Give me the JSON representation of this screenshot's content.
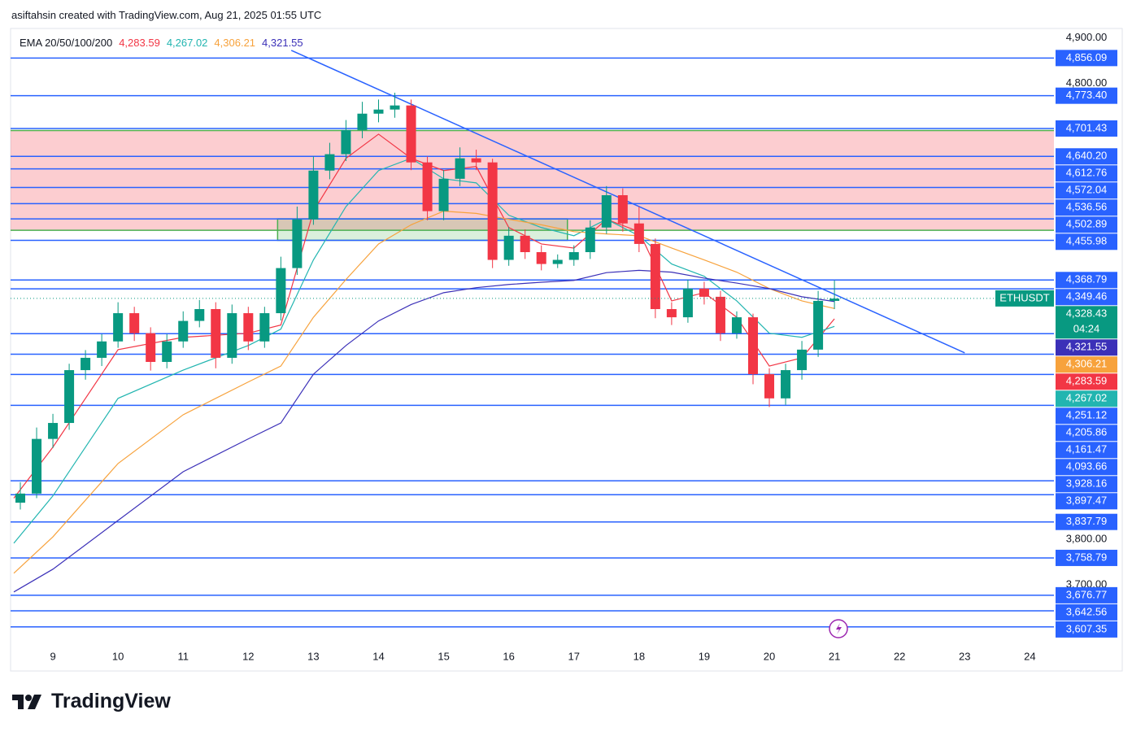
{
  "header": {
    "attribution": "asiftahsin created with TradingView.com, Aug 21, 2025 01:55 UTC"
  },
  "footer": {
    "logo": "TradingView"
  },
  "chart_data": {
    "type": "candlestick",
    "indicator": "EMA 20/50/100/200",
    "symbol": "ETHUSDT",
    "xlim": [
      8.35,
      24.37
    ],
    "ylim": [
      3573,
      4921
    ],
    "xticks": [
      9,
      10,
      11,
      12,
      13,
      14,
      15,
      16,
      17,
      18,
      19,
      20,
      21,
      22,
      23,
      24
    ],
    "yticks": [
      {
        "value": 4900,
        "label": "4,900.00"
      },
      {
        "value": 4800,
        "label": "4,800.00"
      },
      {
        "value": 3800,
        "label": "3,800.00"
      },
      {
        "value": 3700,
        "label": "3,700.00"
      }
    ],
    "up_color": "#089981",
    "down_color": "#f23645",
    "candles": {
      "x": [
        8.5,
        8.75,
        9,
        9.25,
        9.5,
        9.75,
        10,
        10.25,
        10.5,
        10.75,
        11,
        11.25,
        11.5,
        11.75,
        12,
        12.25,
        12.5,
        12.75,
        13,
        13.25,
        13.5,
        13.75,
        14,
        14.25,
        14.5,
        14.75,
        15,
        15.25,
        15.5,
        15.75,
        16,
        16.25,
        16.5,
        16.75,
        17,
        17.25,
        17.5,
        17.75,
        18,
        18.25,
        18.5,
        18.75,
        19,
        19.25,
        19.5,
        19.75,
        20,
        20.25,
        20.5,
        20.75,
        21
      ],
      "open": [
        3880,
        3900,
        4020,
        4055,
        4171,
        4198,
        4234,
        4296,
        4252,
        4189,
        4234,
        4279,
        4305,
        4198,
        4296,
        4234,
        4296,
        4395,
        4502,
        4609,
        4645,
        4698,
        4734,
        4743,
        4752,
        4627,
        4520,
        4591,
        4636,
        4627,
        4413,
        4466,
        4430,
        4404,
        4413,
        4430,
        4484,
        4555,
        4493,
        4448,
        4305,
        4287,
        4350,
        4332,
        4252,
        4287,
        4162,
        4109,
        4171,
        4216,
        4323
      ],
      "high": [
        3925,
        4045,
        4075,
        4185,
        4215,
        4250,
        4320,
        4310,
        4265,
        4250,
        4300,
        4325,
        4320,
        4315,
        4310,
        4310,
        4420,
        4530,
        4640,
        4670,
        4720,
        4760,
        4765,
        4780,
        4765,
        4640,
        4610,
        4660,
        4655,
        4635,
        4485,
        4480,
        4445,
        4425,
        4445,
        4500,
        4575,
        4570,
        4530,
        4460,
        4320,
        4370,
        4365,
        4345,
        4300,
        4295,
        4175,
        4185,
        4235,
        4345,
        4368
      ],
      "low": [
        3865,
        3890,
        4000,
        4040,
        4150,
        4180,
        4220,
        4235,
        4170,
        4175,
        4220,
        4265,
        4175,
        4185,
        4215,
        4220,
        4280,
        4380,
        4490,
        4590,
        4630,
        4680,
        4715,
        4725,
        4610,
        4500,
        4500,
        4575,
        4610,
        4395,
        4400,
        4415,
        4390,
        4395,
        4400,
        4415,
        4470,
        4475,
        4430,
        4285,
        4270,
        4275,
        4315,
        4235,
        4240,
        4140,
        4090,
        4095,
        4150,
        4200,
        4305
      ],
      "close": [
        3900,
        4020,
        4055,
        4171,
        4198,
        4234,
        4296,
        4252,
        4189,
        4234,
        4279,
        4305,
        4198,
        4296,
        4234,
        4296,
        4395,
        4502,
        4609,
        4645,
        4698,
        4734,
        4743,
        4752,
        4627,
        4520,
        4591,
        4636,
        4627,
        4413,
        4466,
        4430,
        4404,
        4413,
        4430,
        4484,
        4555,
        4493,
        4448,
        4305,
        4287,
        4350,
        4332,
        4252,
        4287,
        4162,
        4109,
        4171,
        4216,
        4323,
        4328
      ]
    },
    "ema_x": [
      8.4,
      9,
      10,
      11,
      12,
      12.5,
      13,
      13.5,
      14,
      14.5,
      15,
      15.5,
      16,
      16.5,
      17,
      17.5,
      18,
      18.5,
      19,
      19.5,
      20,
      20.5,
      21
    ],
    "series": [
      {
        "color": "#f23645",
        "value_label": "4,283.59",
        "values": [
          3890,
          4002,
          4216,
          4243,
          4252,
          4270,
          4520,
          4636,
          4689,
          4636,
          4609,
          4618,
          4484,
          4448,
          4439,
          4502,
          4475,
          4323,
          4341,
          4287,
          4180,
          4198,
          4283.59
        ]
      },
      {
        "color": "#22b5b0",
        "value_label": "4,267.02",
        "values": [
          3791,
          3895,
          4109,
          4171,
          4225,
          4261,
          4413,
          4530,
          4609,
          4636,
          4591,
          4582,
          4511,
          4484,
          4466,
          4502,
          4466,
          4404,
          4377,
          4323,
          4252,
          4243,
          4267.02
        ]
      },
      {
        "color": "#f7a23c",
        "value_label": "4,306.21",
        "values": [
          3725,
          3805,
          3966,
          4073,
          4145,
          4180,
          4287,
          4370,
          4448,
          4490,
          4520,
          4515,
          4502,
          4490,
          4475,
          4470,
          4466,
          4439,
          4413,
          4386,
          4350,
          4323,
          4306.21
        ]
      },
      {
        "color": "#3b30b8",
        "value_label": "4,321.55",
        "values": [
          3684,
          3734,
          3841,
          3948,
          4020,
          4055,
          4162,
          4225,
          4279,
          4315,
          4341,
          4352,
          4359,
          4364,
          4368,
          4385,
          4390,
          4386,
          4373,
          4362,
          4350,
          4332,
          4321.55
        ]
      }
    ],
    "current": {
      "value": 4328.43,
      "label": "4,328.43",
      "countdown": "04:24",
      "color": "#089981"
    },
    "level_color": "#2962ff",
    "levels": [
      {
        "value": 4856.09,
        "label": "4,856.09"
      },
      {
        "value": 4773.4,
        "label": "4,773.40"
      },
      {
        "value": 4701.43,
        "label": "4,701.43"
      },
      {
        "value": 4640.2,
        "label": "4,640.20"
      },
      {
        "value": 4612.76,
        "label": "4,612.76"
      },
      {
        "value": 4572.04,
        "label": "4,572.04"
      },
      {
        "value": 4536.56,
        "label": "4,536.56"
      },
      {
        "value": 4502.89,
        "label": "4,502.89"
      },
      {
        "value": 4455.98,
        "label": "4,455.98"
      },
      {
        "value": 4368.79,
        "label": "4,368.79"
      },
      {
        "value": 4349.46,
        "label": "4,349.46"
      },
      {
        "value": 4251.12,
        "label": "4,251.12"
      },
      {
        "value": 4205.86,
        "label": "4,205.86"
      },
      {
        "value": 4161.47,
        "label": "4,161.47"
      },
      {
        "value": 4093.66,
        "label": "4,093.66"
      },
      {
        "value": 3928.16,
        "label": "3,928.16"
      },
      {
        "value": 3897.47,
        "label": "3,897.47"
      },
      {
        "value": 3837.79,
        "label": "3,837.79"
      },
      {
        "value": 3758.79,
        "label": "3,758.79"
      },
      {
        "value": 3676.77,
        "label": "3,676.77"
      },
      {
        "value": 3642.56,
        "label": "3,642.56"
      },
      {
        "value": 3607.35,
        "label": "3,607.35"
      }
    ],
    "zone": {
      "y": [
        4478,
        4697
      ],
      "color": "#f23645",
      "edge_color": "#4caf50"
    },
    "box": {
      "x": [
        12.45,
        16.9
      ],
      "y": [
        4456,
        4503
      ],
      "color": "#4caf50"
    },
    "trend_line": {
      "x": [
        12.66,
        23.0
      ],
      "y": [
        4873,
        4209
      ],
      "color": "#2962ff"
    }
  }
}
